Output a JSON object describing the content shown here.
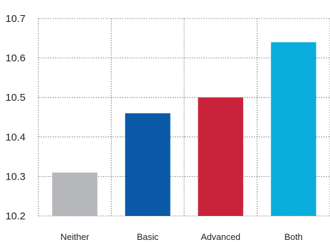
{
  "chart_data": {
    "type": "bar",
    "categories": [
      "Neither",
      "Basic",
      "Advanced",
      "Both"
    ],
    "values": [
      10.31,
      10.46,
      10.5,
      10.64
    ],
    "colors": [
      "#b6b7ba",
      "#0a5aa8",
      "#c8233a",
      "#0aaddb"
    ],
    "ylim": [
      10.2,
      10.7
    ],
    "yticks": [
      "10.2",
      "10.3",
      "10.4",
      "10.5",
      "10.6",
      "10.7"
    ],
    "title": "",
    "xlabel": "",
    "ylabel": "",
    "grid": true
  }
}
